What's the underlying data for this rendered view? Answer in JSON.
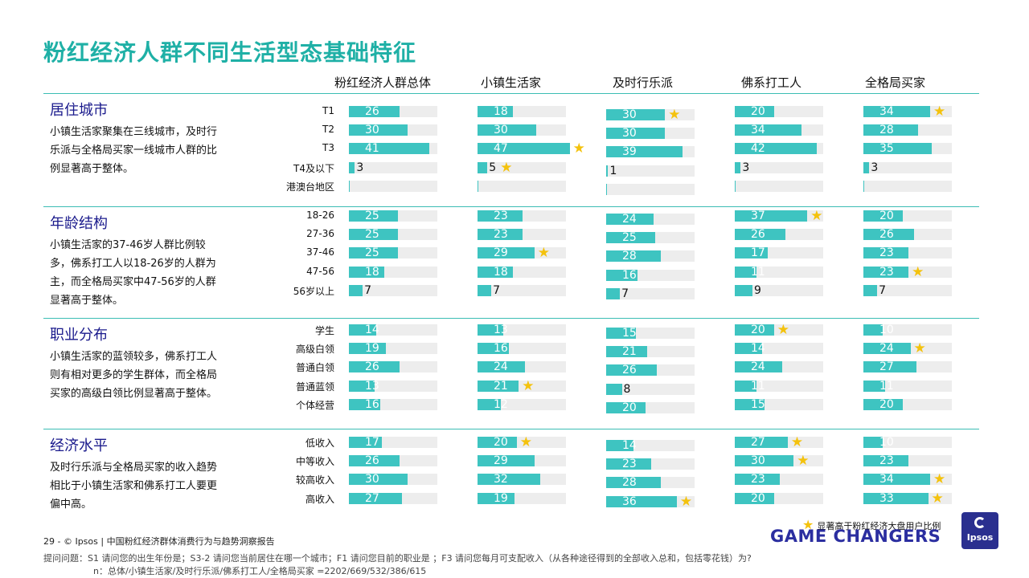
{
  "title": "粉红经济人群不同生活型态基础特征",
  "colors": {
    "accent": "#1fb0a6",
    "bar": "#3ec4c1",
    "track": "#ededed",
    "star": "#f4c20d",
    "section_title": "#1a1a8c"
  },
  "chart_data": {
    "type": "bar",
    "columns": [
      "粉红经济人群总体",
      "小镇生活家",
      "及时行乐派",
      "佛系打工人",
      "全格局买家"
    ],
    "xlim": [
      0,
      50
    ],
    "sections": [
      {
        "title": "居住城市",
        "description": "小镇生活家聚集在三线城市，及时行乐派与全格局买家一线城市人群的比例显著高于整体。",
        "categories": [
          "T1",
          "T2",
          "T3",
          "T4及以下",
          "港澳台地区"
        ],
        "values": [
          [
            26,
            30,
            41,
            3,
            null
          ],
          [
            18,
            30,
            47,
            5,
            null
          ],
          [
            30,
            30,
            39,
            1,
            null
          ],
          [
            20,
            34,
            42,
            3,
            null
          ],
          [
            34,
            28,
            35,
            3,
            null
          ]
        ],
        "stars": [
          [],
          [
            2,
            3
          ],
          [
            0
          ],
          [],
          [
            0
          ]
        ]
      },
      {
        "title": "年龄结构",
        "description": "小镇生活家的37-46岁人群比例较多，佛系打工人以18-26岁的人群为主，而全格局买家中47-56岁的人群显著高于整体。",
        "categories": [
          "18-26",
          "27-36",
          "37-46",
          "47-56",
          "56岁以上"
        ],
        "values": [
          [
            25,
            25,
            25,
            18,
            7
          ],
          [
            23,
            23,
            29,
            18,
            7
          ],
          [
            24,
            25,
            28,
            16,
            7
          ],
          [
            37,
            26,
            17,
            11,
            9
          ],
          [
            20,
            26,
            23,
            23,
            7
          ]
        ],
        "stars": [
          [],
          [
            2
          ],
          [],
          [
            0
          ],
          [
            3
          ]
        ]
      },
      {
        "title": "职业分布",
        "description": "小镇生活家的蓝领较多，佛系打工人则有相对更多的学生群体，而全格局买家的高级白领比例显著高于整体。",
        "categories": [
          "学生",
          "高级白领",
          "普通白领",
          "普通蓝领",
          "个体经营"
        ],
        "values": [
          [
            14,
            19,
            26,
            13,
            16
          ],
          [
            13,
            16,
            24,
            21,
            12
          ],
          [
            15,
            21,
            26,
            8,
            20
          ],
          [
            20,
            14,
            24,
            11,
            15
          ],
          [
            10,
            24,
            27,
            11,
            20
          ]
        ],
        "stars": [
          [],
          [
            3
          ],
          [],
          [
            0
          ],
          [
            1
          ]
        ]
      },
      {
        "title": "经济水平",
        "description": "及时行乐派与全格局买家的收入趋势相比于小镇生活家和佛系打工人要更偏中高。",
        "categories": [
          "低收入",
          "中等收入",
          "较高收入",
          "高收入"
        ],
        "values": [
          [
            17,
            26,
            30,
            27
          ],
          [
            20,
            29,
            32,
            19
          ],
          [
            14,
            23,
            28,
            36
          ],
          [
            27,
            30,
            23,
            20
          ],
          [
            10,
            23,
            34,
            33
          ]
        ],
        "stars": [
          [],
          [
            0
          ],
          [
            3
          ],
          [
            0,
            1
          ],
          [
            2,
            3
          ]
        ]
      }
    ],
    "legend": "显著高于粉红经济大盘用户比例"
  },
  "footer": {
    "page": "29  -  © Ipsos  |  中国粉红经济群体消费行为与趋势洞察报告",
    "question": "提问问题：S1 请问您的出生年份是；S3-2 请问您当前居住在哪一个城市；F1 请问您目前的职业是 ；F3 请问您每月可支配收入（从各种途径得到的全部收入总和，包括零花钱）为?",
    "sample": "n：总体/小镇生活家/及时行乐派/佛系打工人/全格局买家 =2202/669/532/386/615",
    "brand": "GAME CHANGERS",
    "logo": "Ipsos"
  }
}
